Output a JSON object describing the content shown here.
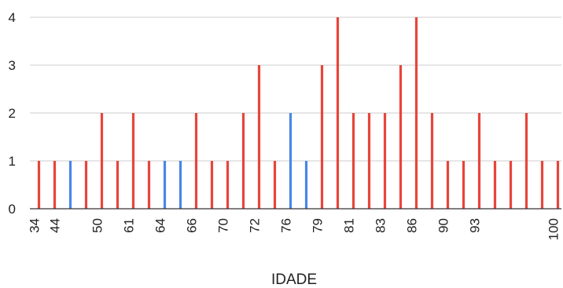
{
  "chart_data": {
    "type": "bar",
    "title": "",
    "xlabel": "IDADE",
    "ylabel": "",
    "ylim": [
      0,
      4
    ],
    "yticks": [
      0,
      1,
      2,
      3,
      4
    ],
    "grid": true,
    "colors": {
      "red": "#e8453c",
      "blue": "#4a86e8",
      "grid": "#cccccc",
      "axis": "#333333"
    },
    "x_tick_labels": [
      "34",
      "44",
      "50",
      "61",
      "64",
      "66",
      "70",
      "72",
      "76",
      "79",
      "81",
      "83",
      "86",
      "90",
      "93",
      "100"
    ],
    "bars": [
      {
        "value": 1,
        "color": "red"
      },
      {
        "value": 1,
        "color": "red"
      },
      {
        "value": 1,
        "color": "blue"
      },
      {
        "value": 1,
        "color": "red"
      },
      {
        "value": 2,
        "color": "red"
      },
      {
        "value": 1,
        "color": "red"
      },
      {
        "value": 2,
        "color": "red"
      },
      {
        "value": 1,
        "color": "red"
      },
      {
        "value": 1,
        "color": "blue"
      },
      {
        "value": 1,
        "color": "blue"
      },
      {
        "value": 2,
        "color": "red"
      },
      {
        "value": 1,
        "color": "red"
      },
      {
        "value": 1,
        "color": "red"
      },
      {
        "value": 2,
        "color": "red"
      },
      {
        "value": 3,
        "color": "red"
      },
      {
        "value": 1,
        "color": "red"
      },
      {
        "value": 2,
        "color": "blue"
      },
      {
        "value": 1,
        "color": "blue"
      },
      {
        "value": 3,
        "color": "red"
      },
      {
        "value": 4,
        "color": "red"
      },
      {
        "value": 2,
        "color": "red"
      },
      {
        "value": 2,
        "color": "red"
      },
      {
        "value": 2,
        "color": "red"
      },
      {
        "value": 3,
        "color": "red"
      },
      {
        "value": 4,
        "color": "red"
      },
      {
        "value": 2,
        "color": "red"
      },
      {
        "value": 1,
        "color": "red"
      },
      {
        "value": 1,
        "color": "red"
      },
      {
        "value": 2,
        "color": "red"
      },
      {
        "value": 1,
        "color": "red"
      },
      {
        "value": 1,
        "color": "red"
      },
      {
        "value": 2,
        "color": "red"
      },
      {
        "value": 1,
        "color": "red"
      },
      {
        "value": 1,
        "color": "red"
      }
    ]
  }
}
